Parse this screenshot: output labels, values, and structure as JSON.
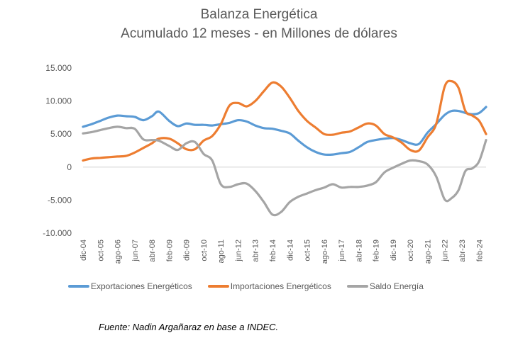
{
  "chart_data": {
    "type": "line",
    "title": "Balanza Energética",
    "subtitle": "Acumulado 12 meses - en Millones de dólares",
    "xlabel": "",
    "ylabel": "",
    "ylim": [
      -10000,
      15000
    ],
    "yticks": [
      15000,
      10000,
      5000,
      0,
      -5000,
      -10000
    ],
    "ytick_labels": [
      "15.000",
      "10.000",
      "5.000",
      "0",
      "-5.000",
      "-10.000"
    ],
    "x_unit": "months since dic-04",
    "xticks": [
      0,
      10,
      20,
      30,
      40,
      50,
      60,
      70,
      80,
      90,
      100,
      110,
      120,
      130,
      140,
      150,
      160,
      170,
      180,
      190,
      200,
      210,
      220,
      230
    ],
    "xtick_labels": [
      "dic-04",
      "oct-05",
      "ago-06",
      "jun-07",
      "abr-08",
      "feb-09",
      "dic-09",
      "oct-10",
      "ago-11",
      "jun-12",
      "abr-13",
      "feb-14",
      "dic-14",
      "oct-15",
      "ago-16",
      "jun-17",
      "abr-18",
      "feb-19",
      "dic-19",
      "oct-20",
      "ago-21",
      "jun-22",
      "abr-23",
      "feb-24"
    ],
    "grid": false,
    "zero_line": true,
    "legend_position": "bottom",
    "x": [
      0,
      5,
      10,
      15,
      20,
      25,
      30,
      35,
      40,
      44,
      50,
      55,
      60,
      65,
      70,
      75,
      80,
      85,
      90,
      95,
      100,
      105,
      110,
      115,
      120,
      125,
      130,
      135,
      140,
      145,
      150,
      155,
      160,
      165,
      170,
      175,
      180,
      185,
      190,
      195,
      200,
      205,
      210,
      214,
      218,
      222,
      226,
      230,
      234
    ],
    "series": [
      {
        "name": "Exportaciones Energéticos",
        "color": "#5B9BD5",
        "values": [
          6100,
          6500,
          7000,
          7500,
          7800,
          7700,
          7600,
          7100,
          7700,
          8400,
          7000,
          6200,
          6600,
          6400,
          6400,
          6300,
          6500,
          6700,
          7100,
          6900,
          6300,
          5900,
          5800,
          5500,
          5100,
          4000,
          3000,
          2300,
          1900,
          1900,
          2100,
          2300,
          3000,
          3800,
          4100,
          4300,
          4400,
          4100,
          3600,
          3500,
          5200,
          6500,
          7900,
          8500,
          8500,
          8200,
          8000,
          8200,
          9100
        ]
      },
      {
        "name": "Importaciones Energéticos",
        "color": "#ED7D31",
        "values": [
          1000,
          1300,
          1400,
          1500,
          1600,
          1700,
          2200,
          2900,
          3600,
          4300,
          4300,
          3600,
          2700,
          2700,
          4000,
          4700,
          6500,
          9300,
          9700,
          9200,
          10000,
          11500,
          12800,
          12200,
          10500,
          8500,
          7000,
          6000,
          5000,
          4900,
          5200,
          5400,
          6000,
          6600,
          6300,
          5000,
          4500,
          3700,
          2600,
          2500,
          4500,
          6500,
          12200,
          13000,
          12000,
          8500,
          7800,
          7000,
          5000
        ]
      },
      {
        "name": "Saldo Energía",
        "color": "#A5A5A5",
        "values": [
          5100,
          5300,
          5600,
          5900,
          6100,
          5900,
          5800,
          4200,
          4100,
          4000,
          3200,
          2600,
          3600,
          3800,
          2000,
          1000,
          -2600,
          -3000,
          -2600,
          -2500,
          -3600,
          -5300,
          -7200,
          -6800,
          -5300,
          -4500,
          -4000,
          -3500,
          -3100,
          -2600,
          -3100,
          -3000,
          -3000,
          -2800,
          -2300,
          -800,
          -100,
          500,
          1000,
          900,
          400,
          -1400,
          -4900,
          -4700,
          -3500,
          -600,
          -200,
          900,
          4100
        ]
      }
    ]
  },
  "legend": {
    "items": [
      "Exportaciones Energéticos",
      "Importaciones Energéticos",
      "Saldo Energía"
    ]
  },
  "source": "Fuente: Nadin Argañaraz en base a INDEC."
}
